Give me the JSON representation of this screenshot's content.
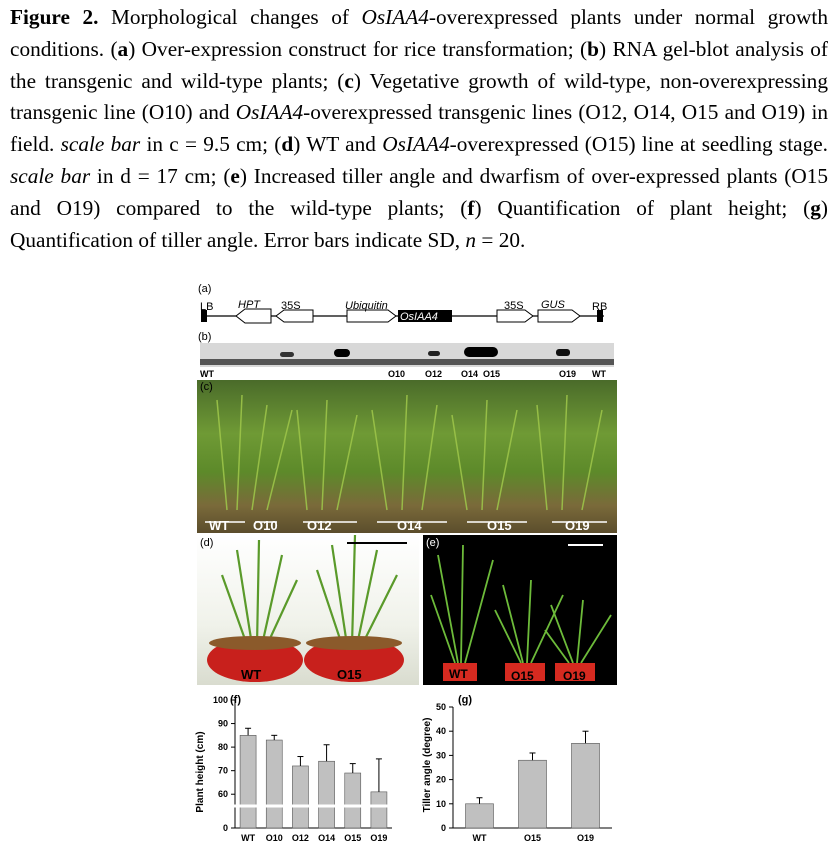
{
  "caption": {
    "figure_label": "Figure 2.",
    "title": " Morphological changes of ",
    "gene": "OsIAA4",
    "title_rest": "-overexpressed plants under normal growth conditions. ",
    "parts": [
      {
        "letter": "a",
        "text": " Over-expression construct for rice transformation; "
      },
      {
        "letter": "b",
        "text": " RNA gel-blot analysis of the transgenic and wild-type plants; "
      },
      {
        "letter": "c",
        "text": " Vegetative growth of wild-type, non-overexpressing transgenic line (O10) and "
      },
      {
        "letter": "d",
        "text": " WT and "
      },
      {
        "letter": "e",
        "text": " Increased tiller angle and dwarfism of over-expressed plants (O15 and O19) compared to the wild-type plants; "
      },
      {
        "letter": "f",
        "text": " Quantification of plant height; "
      },
      {
        "letter": "g",
        "text": " Quantification of tiller angle. Error bars indicate SD, "
      }
    ],
    "c_rest": "-overexpressed transgenic lines (O12, O14, O15 and O19) in field. ",
    "scale_bar": "scale bar",
    "c_scale": " in c = 9.5 cm; ",
    "d_rest": "-overexpressed (O15) line at seedling stage. ",
    "d_scale": " in d = 17 cm; ",
    "n_symbol": "n",
    "n_value": " = 20."
  },
  "panel_a": {
    "label": "(a)",
    "elements": [
      "LB",
      "HPT",
      "35S",
      "Ubiquitin",
      "OsIAA4",
      "35S",
      "GUS",
      "RB"
    ]
  },
  "panel_b": {
    "label": "(b)",
    "lane_labels": [
      "WT",
      "O10",
      "O12",
      "O14",
      "O15",
      "O19",
      "WT"
    ]
  },
  "panel_c": {
    "label": "(c)",
    "lines": [
      "WT",
      "O10",
      "O12",
      "O14",
      "O15",
      "O19"
    ]
  },
  "panel_d": {
    "label": "(d)",
    "pots": [
      "WT",
      "O15"
    ]
  },
  "panel_e": {
    "label": "(e)",
    "pots": [
      "WT",
      "O15",
      "O19"
    ]
  },
  "chart_data": [
    {
      "type": "bar",
      "panel": "(f)",
      "categories": [
        "WT",
        "O10",
        "O12",
        "O14",
        "O15",
        "O19"
      ],
      "values": [
        85,
        83,
        72,
        74,
        69,
        61
      ],
      "errors": [
        3,
        2,
        4,
        7,
        4,
        14
      ],
      "ylabel": "Plant height (cm)",
      "yticks": [
        0,
        60,
        70,
        80,
        90,
        100
      ],
      "axis_break": true,
      "ylim": [
        0,
        100
      ],
      "bar_color": "#c0c0c0"
    },
    {
      "type": "bar",
      "panel": "(g)",
      "categories": [
        "WT",
        "O15",
        "O19"
      ],
      "values": [
        10,
        28,
        35
      ],
      "errors": [
        2.5,
        3,
        5
      ],
      "ylabel": "Tiller angle (degree)",
      "yticks": [
        0,
        10,
        20,
        30,
        40,
        50
      ],
      "ylim": [
        0,
        50
      ],
      "bar_color": "#c0c0c0"
    }
  ]
}
